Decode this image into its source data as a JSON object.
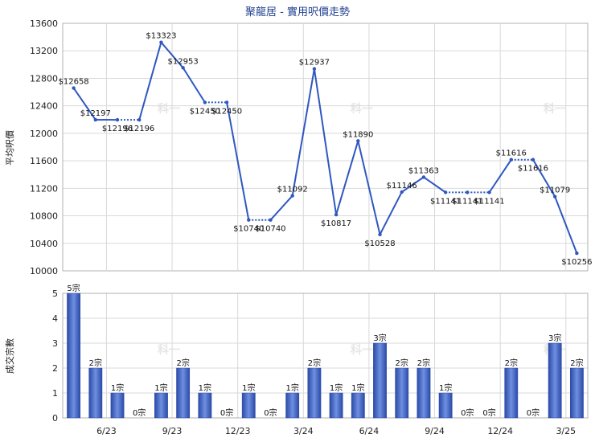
{
  "chart_title": "聚龍居 - 實用呎價走勢",
  "chart_data": [
    {
      "type": "line",
      "title": "聚龍居 - 實用呎價走勢",
      "ylabel": "平均呎價",
      "ylim": [
        10000,
        13600
      ],
      "yticks": [
        "10000",
        "10400",
        "10800",
        "11200",
        "11600",
        "12000",
        "12400",
        "12800",
        "13200",
        "13600"
      ],
      "grid": true,
      "series": [
        {
          "values": [
            12658,
            12197,
            12196,
            12196,
            13323,
            12953,
            12450,
            12450,
            10740,
            10740,
            11092,
            12937,
            10817,
            11890,
            10528,
            11146,
            11363,
            11141,
            11141,
            11141,
            11616,
            11616,
            11079,
            10256
          ],
          "labels": [
            "$12658",
            "$12197",
            "$12196",
            "$12196",
            "$13323",
            "$12953",
            "$12450",
            "$12450",
            "$10740",
            "$10740",
            "$11092",
            "$12937",
            "$10817",
            "$11890",
            "$10528",
            "$11146",
            "$11363",
            "$11141",
            "$11141",
            "$11141",
            "$11616",
            "$11616",
            "$11079",
            "$10256"
          ],
          "carried": [
            false,
            false,
            false,
            true,
            false,
            false,
            false,
            true,
            false,
            true,
            false,
            false,
            false,
            false,
            false,
            false,
            false,
            false,
            true,
            true,
            false,
            true,
            false,
            false
          ]
        }
      ]
    },
    {
      "type": "bar",
      "ylabel": "成交宗數",
      "ylim": [
        0,
        5
      ],
      "yticks": [
        "0",
        "1",
        "2",
        "3",
        "4",
        "5"
      ],
      "x_tick_labels": [
        "6/23",
        "9/23",
        "12/23",
        "3/24",
        "6/24",
        "9/24",
        "12/24",
        "3/25"
      ],
      "values": [
        5,
        2,
        1,
        0,
        1,
        2,
        1,
        0,
        1,
        0,
        1,
        2,
        1,
        1,
        3,
        2,
        2,
        1,
        0,
        0,
        2,
        0,
        3,
        2
      ],
      "labels": [
        "5宗",
        "2宗",
        "1宗",
        "0宗",
        "1宗",
        "2宗",
        "1宗",
        "0宗",
        "1宗",
        "0宗",
        "1宗",
        "2宗",
        "1宗",
        "1宗",
        "3宗",
        "2宗",
        "2宗",
        "1宗",
        "0宗",
        "0宗",
        "2宗",
        "0宗",
        "3宗",
        "2宗"
      ]
    }
  ],
  "colors": {
    "line": "#2f57c0",
    "bar_dark": "#2a4aa8",
    "bar_light": "#6f8fe0",
    "grid": "#d9d9d9",
    "title": "#1f3f8f"
  },
  "watermark_text": "科一"
}
